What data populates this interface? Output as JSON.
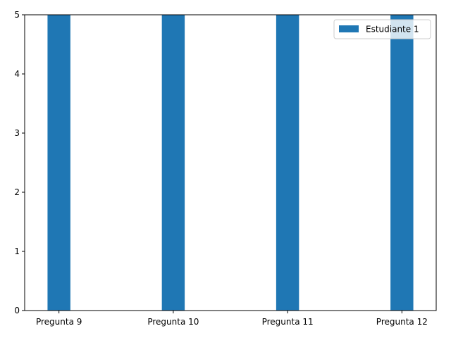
{
  "chart_data": {
    "type": "bar",
    "categories": [
      "Pregunta 9",
      "Pregunta 10",
      "Pregunta 11",
      "Pregunta 12"
    ],
    "series": [
      {
        "name": "Estudiante 1",
        "values": [
          5,
          5,
          5,
          5
        ],
        "color": "#1f77b4"
      }
    ],
    "ylim": [
      0,
      5
    ],
    "yticks": [
      "0",
      "1",
      "2",
      "3",
      "4",
      "5"
    ],
    "title": "",
    "xlabel": "",
    "ylabel": "",
    "grid": false,
    "legend_position": "top-right"
  }
}
